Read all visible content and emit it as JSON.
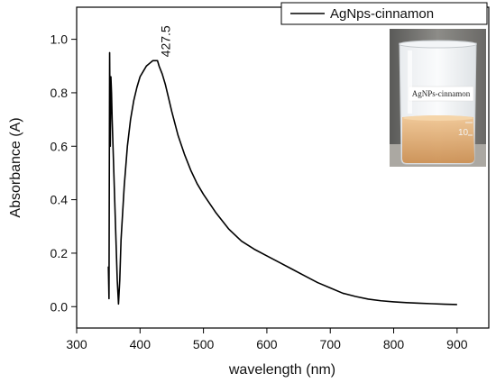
{
  "chart_data": {
    "type": "line",
    "xlabel": "wavelength (nm)",
    "ylabel": "Absorbance (A)",
    "xlim": [
      300,
      950
    ],
    "ylim": [
      -0.08,
      1.12
    ],
    "xticks": [
      300,
      400,
      500,
      600,
      700,
      800,
      900
    ],
    "yticks": [
      0.0,
      0.2,
      0.4,
      0.6,
      0.8,
      1.0
    ],
    "xtick_labels": [
      "300",
      "400",
      "500",
      "600",
      "700",
      "800",
      "900"
    ],
    "ytick_labels": [
      "0.0",
      "0.2",
      "0.4",
      "0.6",
      "0.8",
      "1.0"
    ],
    "grid": false,
    "legend_position": "top-right",
    "annotation": {
      "text": "427.5",
      "x": 427.5,
      "y": 0.92
    },
    "series": [
      {
        "name": "AgNps-cinnamon",
        "color": "#000000",
        "x": [
          350,
          351,
          352,
          353,
          354,
          355,
          356,
          358,
          360,
          362,
          364,
          366,
          368,
          370,
          375,
          380,
          385,
          390,
          395,
          400,
          405,
          410,
          415,
          420,
          425,
          427.5,
          430,
          435,
          440,
          445,
          450,
          460,
          470,
          480,
          490,
          500,
          520,
          540,
          560,
          580,
          600,
          620,
          640,
          660,
          680,
          700,
          720,
          740,
          760,
          780,
          800,
          820,
          840,
          860,
          880,
          900
        ],
        "y": [
          0.15,
          0.03,
          0.95,
          0.6,
          0.86,
          0.8,
          0.7,
          0.55,
          0.4,
          0.25,
          0.1,
          0.01,
          0.1,
          0.25,
          0.45,
          0.6,
          0.7,
          0.77,
          0.82,
          0.86,
          0.88,
          0.9,
          0.91,
          0.92,
          0.92,
          0.92,
          0.9,
          0.87,
          0.83,
          0.78,
          0.73,
          0.64,
          0.57,
          0.51,
          0.46,
          0.42,
          0.35,
          0.29,
          0.245,
          0.215,
          0.19,
          0.165,
          0.14,
          0.115,
          0.09,
          0.07,
          0.05,
          0.038,
          0.028,
          0.022,
          0.018,
          0.015,
          0.013,
          0.011,
          0.009,
          0.008
        ]
      }
    ],
    "inset_photo": {
      "label": "AgNPs-cinnamon",
      "graduation": "10"
    }
  }
}
